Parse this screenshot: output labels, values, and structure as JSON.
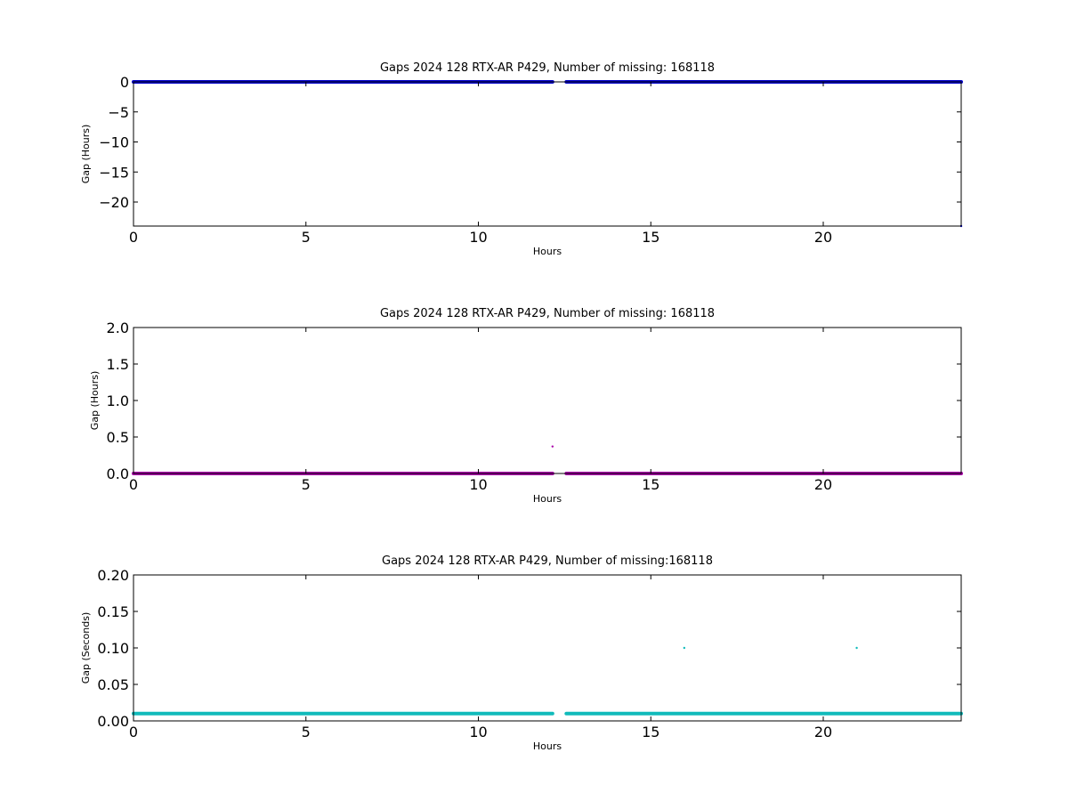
{
  "chart_data": [
    {
      "type": "scatter",
      "title": "Gaps 2024 128 RTX-AR  P429, Number of missing: 168118",
      "xlabel": "Hours",
      "ylabel": "Gap (Hours)",
      "xlim": [
        0,
        24
      ],
      "ylim": [
        -24,
        0
      ],
      "xticks": [
        0,
        5,
        10,
        15,
        20
      ],
      "yticks": [
        0,
        -5,
        -10,
        -15,
        -20
      ],
      "grid": false,
      "color": "#0000cc",
      "series": [
        {
          "segments": [
            {
              "x": [
                0,
                12.15
              ],
              "y": 0
            },
            {
              "x": [
                12.55,
                24
              ],
              "y": 0
            }
          ],
          "points": [
            {
              "x": 24,
              "y": -24
            }
          ]
        }
      ]
    },
    {
      "type": "scatter",
      "title": "Gaps 2024 128 RTX-AR  P429, Number of missing: 168118",
      "xlabel": "Hours",
      "ylabel": "Gap (Hours)",
      "xlim": [
        0,
        24
      ],
      "ylim": [
        0,
        2
      ],
      "xticks": [
        0,
        5,
        10,
        15,
        20
      ],
      "yticks": [
        0.0,
        0.5,
        1.0,
        1.5,
        2.0
      ],
      "grid": false,
      "color": "#aa00aa",
      "series": [
        {
          "segments": [
            {
              "x": [
                0,
                12.15
              ],
              "y": 0.0
            },
            {
              "x": [
                12.55,
                24
              ],
              "y": 0.0
            }
          ],
          "points": [
            {
              "x": 12.15,
              "y": 0.37
            }
          ]
        }
      ]
    },
    {
      "type": "scatter",
      "title": "Gaps 2024 128 RTX-AR  P429, Number of missing:168118",
      "xlabel": "Hours",
      "ylabel": "Gap (Seconds)",
      "xlim": [
        0,
        24
      ],
      "ylim": [
        0,
        0.2
      ],
      "xticks": [
        0,
        5,
        10,
        15,
        20
      ],
      "yticks": [
        0.0,
        0.05,
        0.1,
        0.15,
        0.2
      ],
      "grid": false,
      "color": "#11bbbb",
      "series": [
        {
          "segments": [
            {
              "x": [
                0,
                12.15
              ],
              "y": 0.01
            },
            {
              "x": [
                12.55,
                24
              ],
              "y": 0.01
            }
          ],
          "points": [
            {
              "x": 15.97,
              "y": 0.1
            },
            {
              "x": 20.97,
              "y": 0.1
            }
          ]
        }
      ]
    }
  ]
}
